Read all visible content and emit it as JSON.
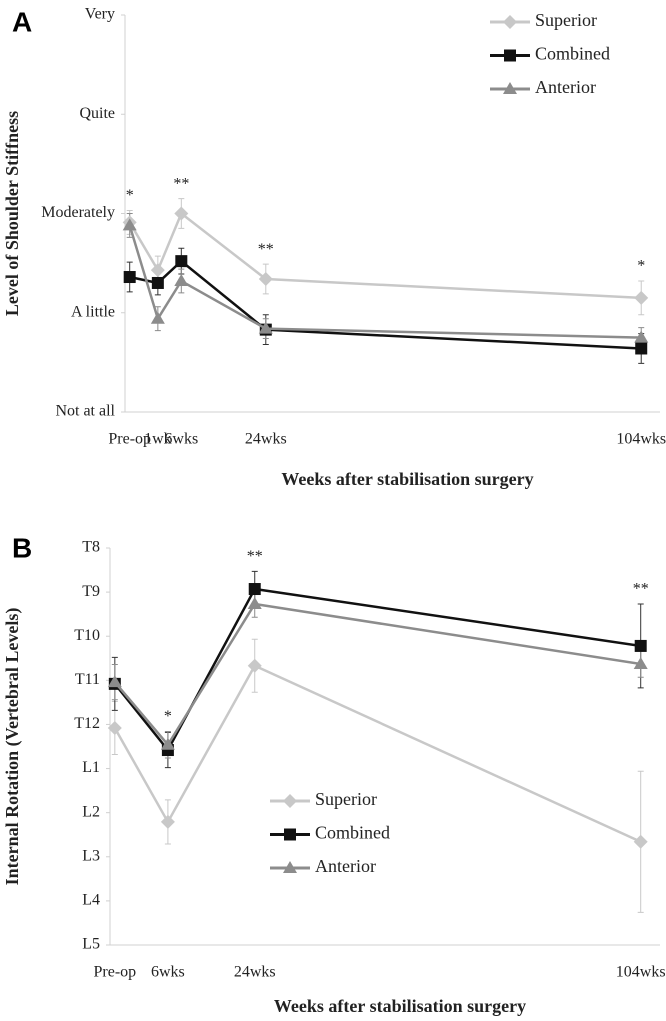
{
  "chart_data": [
    {
      "type": "line",
      "panel_label": "A",
      "y_label": "Level of Shoulder Stiffness",
      "x_label": "Weeks after stabilisation surgery",
      "x": [
        -5,
        1,
        6,
        24,
        104
      ],
      "xlim": [
        -6,
        108
      ],
      "xticks": [
        {
          "value": -5,
          "label": "Pre-op"
        },
        {
          "value": 1,
          "label": "1wk"
        },
        {
          "value": 6,
          "label": "6wks"
        },
        {
          "value": 24,
          "label": "24wks"
        },
        {
          "value": 104,
          "label": "104wks"
        }
      ],
      "ylim": [
        0,
        4
      ],
      "yticks": [
        {
          "value": 0,
          "label": "Not at all"
        },
        {
          "value": 1,
          "label": "A little"
        },
        {
          "value": 2,
          "label": "Moderately"
        },
        {
          "value": 3,
          "label": "Quite"
        },
        {
          "value": 4,
          "label": "Very"
        }
      ],
      "legend": "upper right",
      "significance": [
        "*",
        null,
        "**",
        "**",
        "*"
      ],
      "series": [
        {
          "name": "Superior",
          "color": "#c8c8c8",
          "marker": "diamond",
          "values": [
            1.91,
            1.43,
            2.0,
            1.34,
            1.15
          ],
          "errors": [
            0.12,
            0.14,
            0.15,
            0.15,
            0.17
          ]
        },
        {
          "name": "Combined",
          "color": "#111111",
          "marker": "square",
          "values": [
            1.36,
            1.3,
            1.52,
            0.83,
            0.64
          ],
          "errors": [
            0.15,
            0.12,
            0.13,
            0.15,
            0.15
          ]
        },
        {
          "name": "Anterior",
          "color": "#8c8c8c",
          "marker": "triangle",
          "values": [
            1.88,
            0.94,
            1.32,
            0.84,
            0.75
          ],
          "errors": [
            0.12,
            0.12,
            0.12,
            0.1,
            0.1
          ]
        }
      ]
    },
    {
      "type": "line",
      "panel_label": "B",
      "y_label": "Internal Rotation (Vertebral Levels)",
      "x_label": "Weeks after stabilisation surgery",
      "x": [
        -5,
        6,
        24,
        104
      ],
      "xlim": [
        -6,
        108
      ],
      "xticks": [
        {
          "value": -5,
          "label": "Pre-op"
        },
        {
          "value": 6,
          "label": "6wks"
        },
        {
          "value": 24,
          "label": "24wks"
        },
        {
          "value": 104,
          "label": "104wks"
        }
      ],
      "ylim": [
        0,
        9
      ],
      "yticks": [
        {
          "value": 0,
          "label": "L5"
        },
        {
          "value": 1,
          "label": "L4"
        },
        {
          "value": 2,
          "label": "L3"
        },
        {
          "value": 3,
          "label": "L2"
        },
        {
          "value": 4,
          "label": "L1"
        },
        {
          "value": 5,
          "label": "T12"
        },
        {
          "value": 6,
          "label": "T11"
        },
        {
          "value": 7,
          "label": "T10"
        },
        {
          "value": 8,
          "label": "T9"
        },
        {
          "value": 9,
          "label": "T8"
        }
      ],
      "legend": "center",
      "significance": [
        null,
        "*",
        "**",
        "**"
      ],
      "series": [
        {
          "name": "Superior",
          "color": "#c8c8c8",
          "marker": "diamond",
          "values": [
            4.92,
            2.79,
            6.33,
            2.34
          ],
          "errors": [
            0.6,
            0.5,
            0.6,
            1.6
          ]
        },
        {
          "name": "Combined",
          "color": "#111111",
          "marker": "square",
          "values": [
            5.92,
            4.42,
            8.07,
            6.78
          ],
          "errors": [
            0.6,
            0.4,
            0.4,
            0.95
          ]
        },
        {
          "name": "Anterior",
          "color": "#8c8c8c",
          "marker": "triangle",
          "values": [
            5.96,
            4.54,
            7.73,
            6.37
          ],
          "errors": [
            0.4,
            0.3,
            0.3,
            0.3
          ]
        }
      ]
    }
  ]
}
